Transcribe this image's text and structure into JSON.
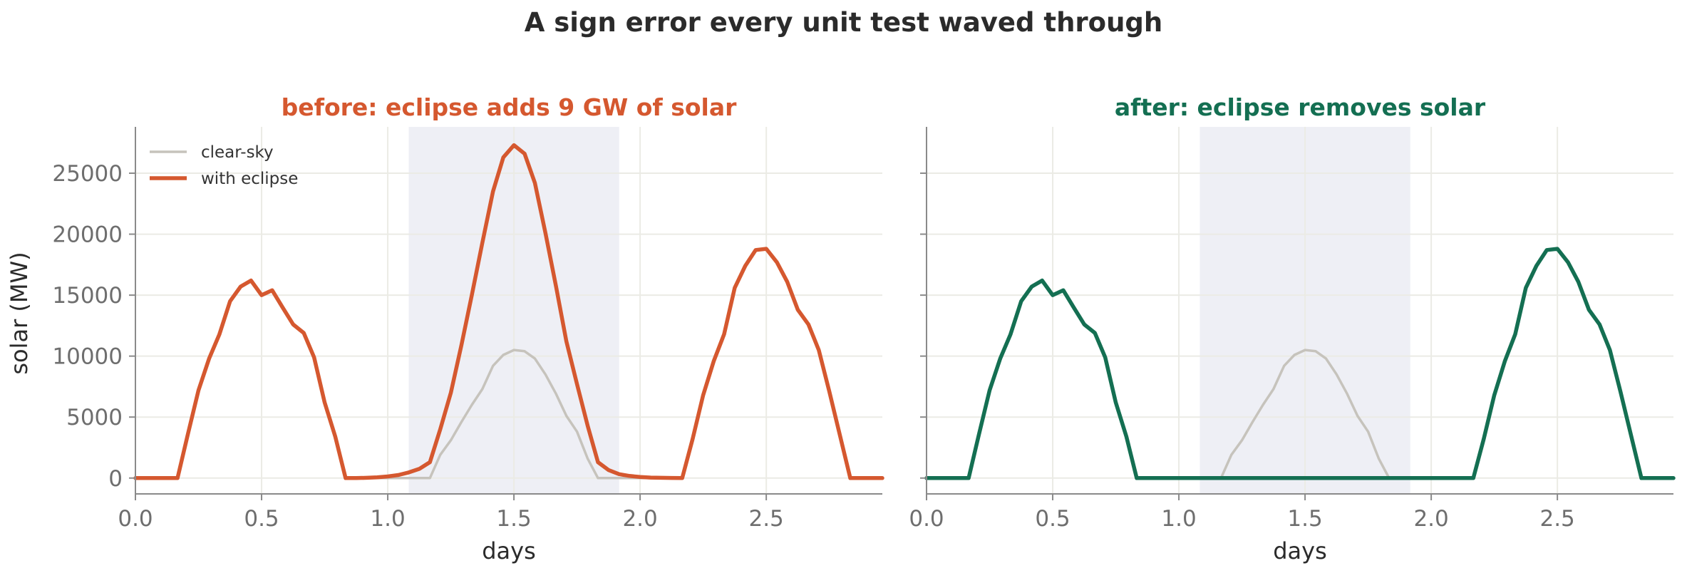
{
  "suptitle": "A sign error every unit test waved through",
  "colors": {
    "before": "#d5582f",
    "after": "#146f52",
    "clear_sky": "#c6c3bc",
    "eclipse_band": "#eeeff5",
    "grid": "#ebebe5",
    "axis": "#8a8a8a"
  },
  "chart_data": [
    {
      "type": "line",
      "title": "before: eclipse adds 9 GW of solar",
      "xlabel": "days",
      "ylabel": "solar (MW)",
      "xlim": [
        0.0,
        2.96
      ],
      "ylim": [
        -1300,
        28800
      ],
      "xticks": [
        0.0,
        0.5,
        1.0,
        1.5,
        2.0,
        2.5
      ],
      "xtick_labels": [
        "0.0",
        "0.5",
        "1.0",
        "1.5",
        "2.0",
        "2.5"
      ],
      "yticks": [
        0,
        5000,
        10000,
        15000,
        20000,
        25000
      ],
      "ytick_labels": [
        "0",
        "5000",
        "10000",
        "15000",
        "20000",
        "25000"
      ],
      "grid": true,
      "legend": "top-left",
      "shaded_region": [
        1.083,
        1.917
      ],
      "series": [
        {
          "name": "clear-sky",
          "color_key": "clear_sky",
          "x": [
            0.0,
            0.167,
            0.208,
            0.25,
            0.292,
            0.333,
            0.375,
            0.417,
            0.458,
            0.5,
            0.542,
            0.583,
            0.625,
            0.667,
            0.708,
            0.75,
            0.792,
            0.833,
            1.167,
            1.208,
            1.25,
            1.292,
            1.333,
            1.375,
            1.417,
            1.458,
            1.5,
            1.542,
            1.583,
            1.625,
            1.667,
            1.708,
            1.75,
            1.792,
            1.833,
            2.167,
            2.208,
            2.25,
            2.292,
            2.333,
            2.375,
            2.417,
            2.458,
            2.5,
            2.542,
            2.583,
            2.625,
            2.667,
            2.708,
            2.75,
            2.792,
            2.833,
            2.96
          ],
          "y": [
            0,
            0,
            3600,
            7200,
            9800,
            11800,
            14500,
            15700,
            16200,
            15000,
            15400,
            14000,
            12600,
            11900,
            9900,
            6200,
            3400,
            0,
            0,
            1900,
            3100,
            4600,
            6000,
            7300,
            9200,
            10100,
            10500,
            10400,
            9800,
            8500,
            6900,
            5100,
            3800,
            1600,
            0,
            0,
            3200,
            6800,
            9600,
            11800,
            15600,
            17400,
            18700,
            18800,
            17700,
            16100,
            13800,
            12600,
            10500,
            7100,
            3500,
            0,
            0
          ]
        },
        {
          "name": "with eclipse",
          "color_key": "before",
          "x": [
            0.0,
            0.167,
            0.208,
            0.25,
            0.292,
            0.333,
            0.375,
            0.417,
            0.458,
            0.5,
            0.542,
            0.583,
            0.625,
            0.667,
            0.708,
            0.75,
            0.792,
            0.833,
            0.875,
            0.917,
            0.958,
            1.0,
            1.042,
            1.083,
            1.125,
            1.167,
            1.208,
            1.25,
            1.292,
            1.333,
            1.375,
            1.417,
            1.458,
            1.5,
            1.542,
            1.583,
            1.625,
            1.667,
            1.708,
            1.75,
            1.792,
            1.833,
            1.875,
            1.917,
            1.958,
            2.0,
            2.042,
            2.083,
            2.125,
            2.167,
            2.208,
            2.25,
            2.292,
            2.333,
            2.375,
            2.417,
            2.458,
            2.5,
            2.542,
            2.583,
            2.625,
            2.667,
            2.708,
            2.75,
            2.792,
            2.833,
            2.96
          ],
          "y": [
            0,
            0,
            3600,
            7200,
            9800,
            11800,
            14500,
            15700,
            16200,
            15000,
            15400,
            14000,
            12600,
            11900,
            9900,
            6200,
            3400,
            0,
            0,
            20,
            60,
            130,
            250,
            460,
            750,
            1300,
            4000,
            7000,
            10900,
            15000,
            19300,
            23500,
            26300,
            27300,
            26600,
            24200,
            20100,
            15700,
            11200,
            7700,
            4300,
            1300,
            650,
            320,
            170,
            90,
            40,
            20,
            10,
            0,
            3200,
            6800,
            9600,
            11800,
            15600,
            17400,
            18700,
            18800,
            17700,
            16100,
            13800,
            12600,
            10500,
            7100,
            3500,
            0,
            0
          ]
        }
      ]
    },
    {
      "type": "line",
      "title": "after: eclipse removes solar",
      "xlabel": "days",
      "ylabel": "",
      "xlim": [
        0.0,
        2.96
      ],
      "ylim": [
        -1300,
        28800
      ],
      "xticks": [
        0.0,
        0.5,
        1.0,
        1.5,
        2.0,
        2.5
      ],
      "xtick_labels": [
        "0.0",
        "0.5",
        "1.0",
        "1.5",
        "2.0",
        "2.5"
      ],
      "yticks": [
        0,
        5000,
        10000,
        15000,
        20000,
        25000
      ],
      "grid": true,
      "shaded_region": [
        1.083,
        1.917
      ],
      "series": [
        {
          "name": "clear-sky",
          "color_key": "clear_sky",
          "x": [
            0.0,
            0.167,
            0.208,
            0.25,
            0.292,
            0.333,
            0.375,
            0.417,
            0.458,
            0.5,
            0.542,
            0.583,
            0.625,
            0.667,
            0.708,
            0.75,
            0.792,
            0.833,
            1.167,
            1.208,
            1.25,
            1.292,
            1.333,
            1.375,
            1.417,
            1.458,
            1.5,
            1.542,
            1.583,
            1.625,
            1.667,
            1.708,
            1.75,
            1.792,
            1.833,
            2.167,
            2.208,
            2.25,
            2.292,
            2.333,
            2.375,
            2.417,
            2.458,
            2.5,
            2.542,
            2.583,
            2.625,
            2.667,
            2.708,
            2.75,
            2.792,
            2.833,
            2.96
          ],
          "y": [
            0,
            0,
            3600,
            7200,
            9800,
            11800,
            14500,
            15700,
            16200,
            15000,
            15400,
            14000,
            12600,
            11900,
            9900,
            6200,
            3400,
            0,
            0,
            1900,
            3100,
            4600,
            6000,
            7300,
            9200,
            10100,
            10500,
            10400,
            9800,
            8500,
            6900,
            5100,
            3800,
            1600,
            0,
            0,
            3200,
            6800,
            9600,
            11800,
            15600,
            17400,
            18700,
            18800,
            17700,
            16100,
            13800,
            12600,
            10500,
            7100,
            3500,
            0,
            0
          ]
        },
        {
          "name": "with eclipse",
          "color_key": "after",
          "x": [
            0.0,
            0.167,
            0.208,
            0.25,
            0.292,
            0.333,
            0.375,
            0.417,
            0.458,
            0.5,
            0.542,
            0.583,
            0.625,
            0.667,
            0.708,
            0.75,
            0.792,
            0.833,
            2.167,
            2.208,
            2.25,
            2.292,
            2.333,
            2.375,
            2.417,
            2.458,
            2.5,
            2.542,
            2.583,
            2.625,
            2.667,
            2.708,
            2.75,
            2.792,
            2.833,
            2.96
          ],
          "y": [
            0,
            0,
            3600,
            7200,
            9800,
            11800,
            14500,
            15700,
            16200,
            15000,
            15400,
            14000,
            12600,
            11900,
            9900,
            6200,
            3400,
            0,
            0,
            3200,
            6800,
            9600,
            11800,
            15600,
            17400,
            18700,
            18800,
            17700,
            16100,
            13800,
            12600,
            10500,
            7100,
            3500,
            0,
            0
          ]
        }
      ]
    }
  ]
}
